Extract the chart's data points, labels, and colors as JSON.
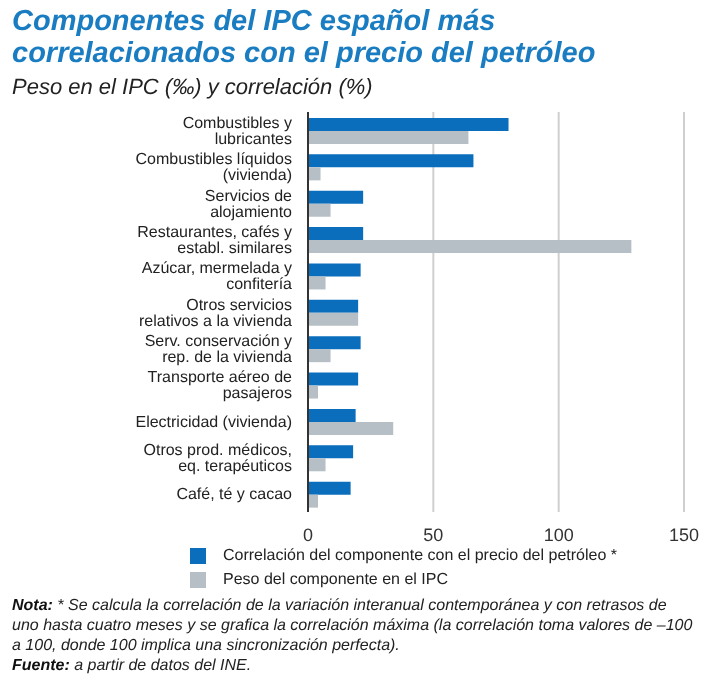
{
  "chart_data": {
    "type": "bar",
    "orientation": "horizontal",
    "title": "Componentes del IPC español más correlacionados con el precio del petróleo",
    "subtitle": "Peso en el IPC (‰) y correlación (%)",
    "categories": [
      "Combustibles y lubricantes",
      "Combustibles líquidos (vivienda)",
      "Servicios de alojamiento",
      "Restaurantes, cafés y establ. similares",
      "Azúcar, mermelada y confitería",
      "Otros servicios relativos a la vivienda",
      "Serv. conservación y rep. de la vivienda",
      "Transporte aéreo de pasajeros",
      "Electricidad (vivienda)",
      "Otros prod. médicos, eq. terapéuticos",
      "Café, té y cacao"
    ],
    "series": [
      {
        "name": "Correlación del componente con el precio del petróleo *",
        "color": "#0a6ebd",
        "values": [
          80,
          66,
          22,
          22,
          21,
          20,
          21,
          20,
          19,
          18,
          17
        ]
      },
      {
        "name": "Peso del componente en el IPC",
        "color": "#b5bfc5",
        "values": [
          64,
          5,
          9,
          129,
          7,
          20,
          9,
          4,
          34,
          7,
          4
        ]
      }
    ],
    "xlim": [
      0,
      150
    ],
    "xticks": [
      0,
      50,
      100,
      150
    ],
    "grid": "x",
    "legend": "bottom",
    "annotations": [
      "Nota: * Se calcula la correlación de la variación interanual contemporánea y con retrasos de uno hasta cuatro meses y se grafica la correlación máxima (la correlación toma valores de –100 a 100, donde 100 implica una sincronización perfecta).",
      "Fuente: a partir de datos del INE."
    ]
  }
}
